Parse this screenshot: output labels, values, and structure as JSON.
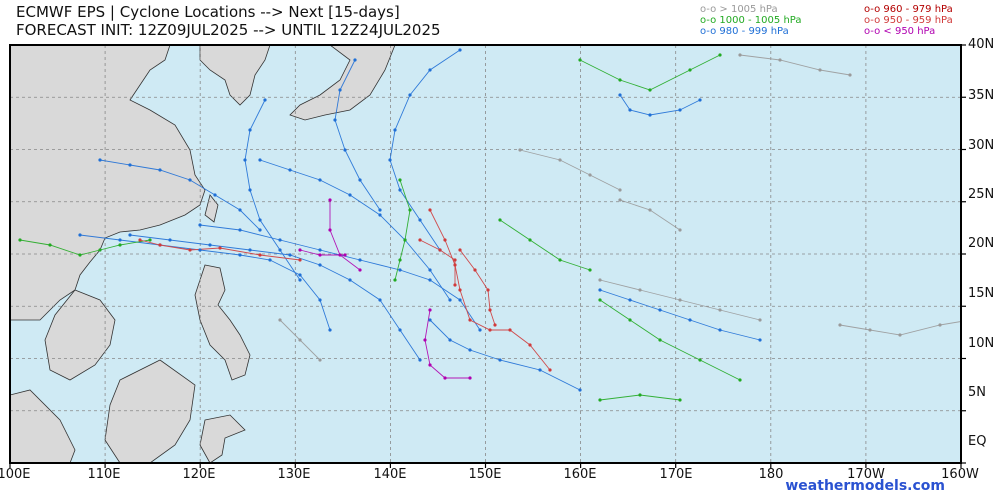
{
  "header": {
    "title": "ECMWF EPS | Cyclone Locations --> Next [15-days]",
    "subtitle": "FORECAST INIT: 12Z09JUL2025 --> UNTIL 12Z24JUL2025"
  },
  "legend": [
    {
      "label": "o-o > 1005 hPa",
      "color": "#9a9a9a"
    },
    {
      "label": "o-o 1000 - 1005 hPa",
      "color": "#22aa22"
    },
    {
      "label": "o-o 980 - 999 hPa",
      "color": "#1f6fd6"
    },
    {
      "label": "o-o 960 - 979 hPa",
      "color": "#b30000"
    },
    {
      "label": "o-o 950 - 959 hPa",
      "color": "#d03a3a"
    },
    {
      "label": "o-o < 950 hPa",
      "color": "#b000b0"
    }
  ],
  "map": {
    "lat_labels": [
      "40N",
      "35N",
      "30N",
      "25N",
      "20N",
      "15N",
      "10N",
      "5N",
      "EQ"
    ],
    "lon_labels": [
      "100E",
      "110E",
      "120E",
      "130E",
      "140E",
      "150E",
      "160E",
      "170E",
      "180",
      "170W",
      "160W"
    ],
    "lat_range": [
      0,
      40
    ],
    "lon_range": [
      100,
      200
    ],
    "grid": true,
    "ocean_color": "#cfeaf4",
    "land_color": "#d9d9d9"
  },
  "credit": "weathermodels.com"
}
